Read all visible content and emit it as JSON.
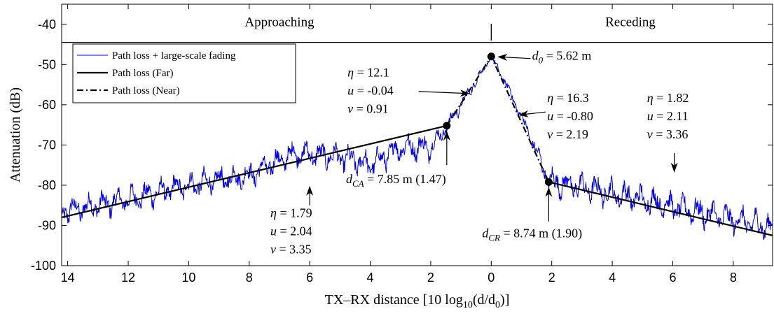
{
  "chart_data": {
    "type": "line",
    "xlabel": "TX–RX distance [10 log10(d/d0)]",
    "xlabel_parts": {
      "prefix": "TX–RX distance [10 log",
      "sub": "10",
      "suffix": "(d/d",
      "sub2": "0",
      "end": ")]"
    },
    "ylabel": "Attenuation (dB)",
    "xlim": [
      -14.2,
      9.3
    ],
    "ylim": [
      -100,
      -35
    ],
    "grid": false,
    "x_axis_note": "left half mirrored (approaching side labeled by distance magnitude)",
    "xticks": [
      {
        "pos": -14,
        "label": "14"
      },
      {
        "pos": -12,
        "label": "12"
      },
      {
        "pos": -10,
        "label": "10"
      },
      {
        "pos": -8,
        "label": "8"
      },
      {
        "pos": -6,
        "label": "6"
      },
      {
        "pos": -4,
        "label": "4"
      },
      {
        "pos": -2,
        "label": "2"
      },
      {
        "pos": 0,
        "label": "0"
      },
      {
        "pos": 2,
        "label": "2"
      },
      {
        "pos": 4,
        "label": "4"
      },
      {
        "pos": 6,
        "label": "6"
      },
      {
        "pos": 8,
        "label": "8"
      }
    ],
    "yticks": [
      {
        "pos": -40,
        "label": "-40"
      },
      {
        "pos": -50,
        "label": "-50"
      },
      {
        "pos": -60,
        "label": "-60"
      },
      {
        "pos": -70,
        "label": "-70"
      },
      {
        "pos": -80,
        "label": "-80"
      },
      {
        "pos": -90,
        "label": "-90"
      },
      {
        "pos": -100,
        "label": "-100"
      }
    ],
    "regions": [
      {
        "label": "Approaching",
        "x": -7.0
      },
      {
        "label": "Receding",
        "x": 4.6
      }
    ],
    "region_divider_y": -44.5,
    "legend": {
      "position": "top-left",
      "entries": [
        {
          "label": "Path loss + large-scale fading",
          "style": "solid-thin",
          "color": "#0000ee"
        },
        {
          "label": "Path loss (Far)",
          "style": "solid",
          "color": "#000000"
        },
        {
          "label": "Path loss (Near)",
          "style": "dashdot",
          "color": "#000000"
        }
      ]
    },
    "series": [
      {
        "name": "Path loss + large-scale fading",
        "color": "#0000ee",
        "style": "noisy",
        "trend": [
          {
            "x": -14.2,
            "y": -86.5
          },
          {
            "x": -13.0,
            "y": -85.0
          },
          {
            "x": -12.0,
            "y": -83.5
          },
          {
            "x": -10.0,
            "y": -80.0
          },
          {
            "x": -8.0,
            "y": -77.5
          },
          {
            "x": -6.5,
            "y": -72.0
          },
          {
            "x": -5.0,
            "y": -73.0
          },
          {
            "x": -4.0,
            "y": -75.0
          },
          {
            "x": -3.0,
            "y": -70.5
          },
          {
            "x": -2.0,
            "y": -70.5
          },
          {
            "x": -1.47,
            "y": -65.5
          },
          {
            "x": -0.7,
            "y": -56.5
          },
          {
            "x": 0.0,
            "y": -48.0
          },
          {
            "x": 0.5,
            "y": -55.0
          },
          {
            "x": 1.0,
            "y": -63.0
          },
          {
            "x": 1.6,
            "y": -73.5
          },
          {
            "x": 1.9,
            "y": -79.0
          },
          {
            "x": 3.0,
            "y": -80.5
          },
          {
            "x": 5.0,
            "y": -83.5
          },
          {
            "x": 7.0,
            "y": -87.0
          },
          {
            "x": 9.3,
            "y": -90.5
          }
        ]
      },
      {
        "name": "Path loss (Far)",
        "color": "#000000",
        "style": "solid",
        "points": [
          {
            "x": -14.2,
            "y": -88.0
          },
          {
            "x": -1.47,
            "y": -65.2
          }
        ]
      },
      {
        "name": "Path loss (Far)",
        "color": "#000000",
        "style": "solid",
        "points": [
          {
            "x": 1.9,
            "y": -79.2
          },
          {
            "x": 9.3,
            "y": -92.5
          }
        ]
      },
      {
        "name": "Path loss (Near)",
        "color": "#000000",
        "style": "dashdot",
        "points": [
          {
            "x": -1.47,
            "y": -65.2
          },
          {
            "x": 0.0,
            "y": -48.0
          },
          {
            "x": 1.9,
            "y": -79.2
          }
        ]
      }
    ],
    "markers": [
      {
        "x": 0.0,
        "y": -48.0
      },
      {
        "x": -1.47,
        "y": -65.2
      },
      {
        "x": 1.9,
        "y": -79.2
      }
    ],
    "annotations": [
      {
        "id": "d0",
        "lines": [
          {
            "sym": "d",
            "sub": "0",
            "text": " = 5.62 m"
          }
        ],
        "text_pos": {
          "x": 1.35,
          "y": -48.8
        },
        "arrow": {
          "from": {
            "x": 1.3,
            "y": -48.5
          },
          "to": {
            "x": 0.25,
            "y": -48.1
          }
        }
      },
      {
        "id": "near-approach-params",
        "lines": [
          {
            "sym": "η",
            "text": " = 12.1"
          },
          {
            "sym": "u",
            "text": " = -0.04"
          },
          {
            "sym": "v",
            "text": " = 0.91"
          }
        ],
        "text_pos": {
          "x": -4.75,
          "y": -53.0
        },
        "arrow": {
          "from": {
            "x": -2.4,
            "y": -56.7
          },
          "to": {
            "x": -0.75,
            "y": -57.2
          }
        }
      },
      {
        "id": "near-recede-params",
        "lines": [
          {
            "sym": "η",
            "text": " = 16.3"
          },
          {
            "sym": "u",
            "text": " = -0.80"
          },
          {
            "sym": "v",
            "text": " = 2.19"
          }
        ],
        "text_pos": {
          "x": 1.85,
          "y": -59.3
        },
        "arrow": {
          "from": {
            "x": 1.8,
            "y": -61.8
          },
          "to": {
            "x": 0.95,
            "y": -62.5
          }
        }
      },
      {
        "id": "far-recede-params",
        "lines": [
          {
            "sym": "η",
            "text": " = 1.82"
          },
          {
            "sym": "u",
            "text": " = 2.11"
          },
          {
            "sym": "v",
            "text": " = 3.36"
          }
        ],
        "text_pos": {
          "x": 5.15,
          "y": -59.3
        },
        "arrow": {
          "from": {
            "x": 6.05,
            "y": -72.0
          },
          "to": {
            "x": 6.05,
            "y": -76.5
          }
        }
      },
      {
        "id": "far-approach-params",
        "lines": [
          {
            "sym": "η",
            "text": " = 1.79"
          },
          {
            "sym": "u",
            "text": " = 2.04"
          },
          {
            "sym": "v",
            "text": " = 3.35"
          }
        ],
        "text_pos": {
          "x": -7.3,
          "y": -87.9
        },
        "arrow": {
          "from": {
            "x": -6.0,
            "y": -85.0
          },
          "to": {
            "x": -6.0,
            "y": -80.5
          }
        }
      },
      {
        "id": "dCA",
        "lines": [
          {
            "sym": "d",
            "sub": "CA",
            "text": " = 7.85 m (1.47)"
          }
        ],
        "text_pos": {
          "x": -4.8,
          "y": -79.5
        },
        "arrow": {
          "from": {
            "x": -1.47,
            "y": -75.0
          },
          "to": {
            "x": -1.47,
            "y": -66.8
          }
        }
      },
      {
        "id": "dCR",
        "lines": [
          {
            "sym": "d",
            "sub": "CR",
            "text": " = 8.74 m (1.90)"
          }
        ],
        "text_pos": {
          "x": -0.3,
          "y": -93.0
        },
        "arrow": {
          "from": {
            "x": 1.9,
            "y": -89.0
          },
          "to": {
            "x": 1.9,
            "y": -80.8
          }
        }
      }
    ]
  }
}
